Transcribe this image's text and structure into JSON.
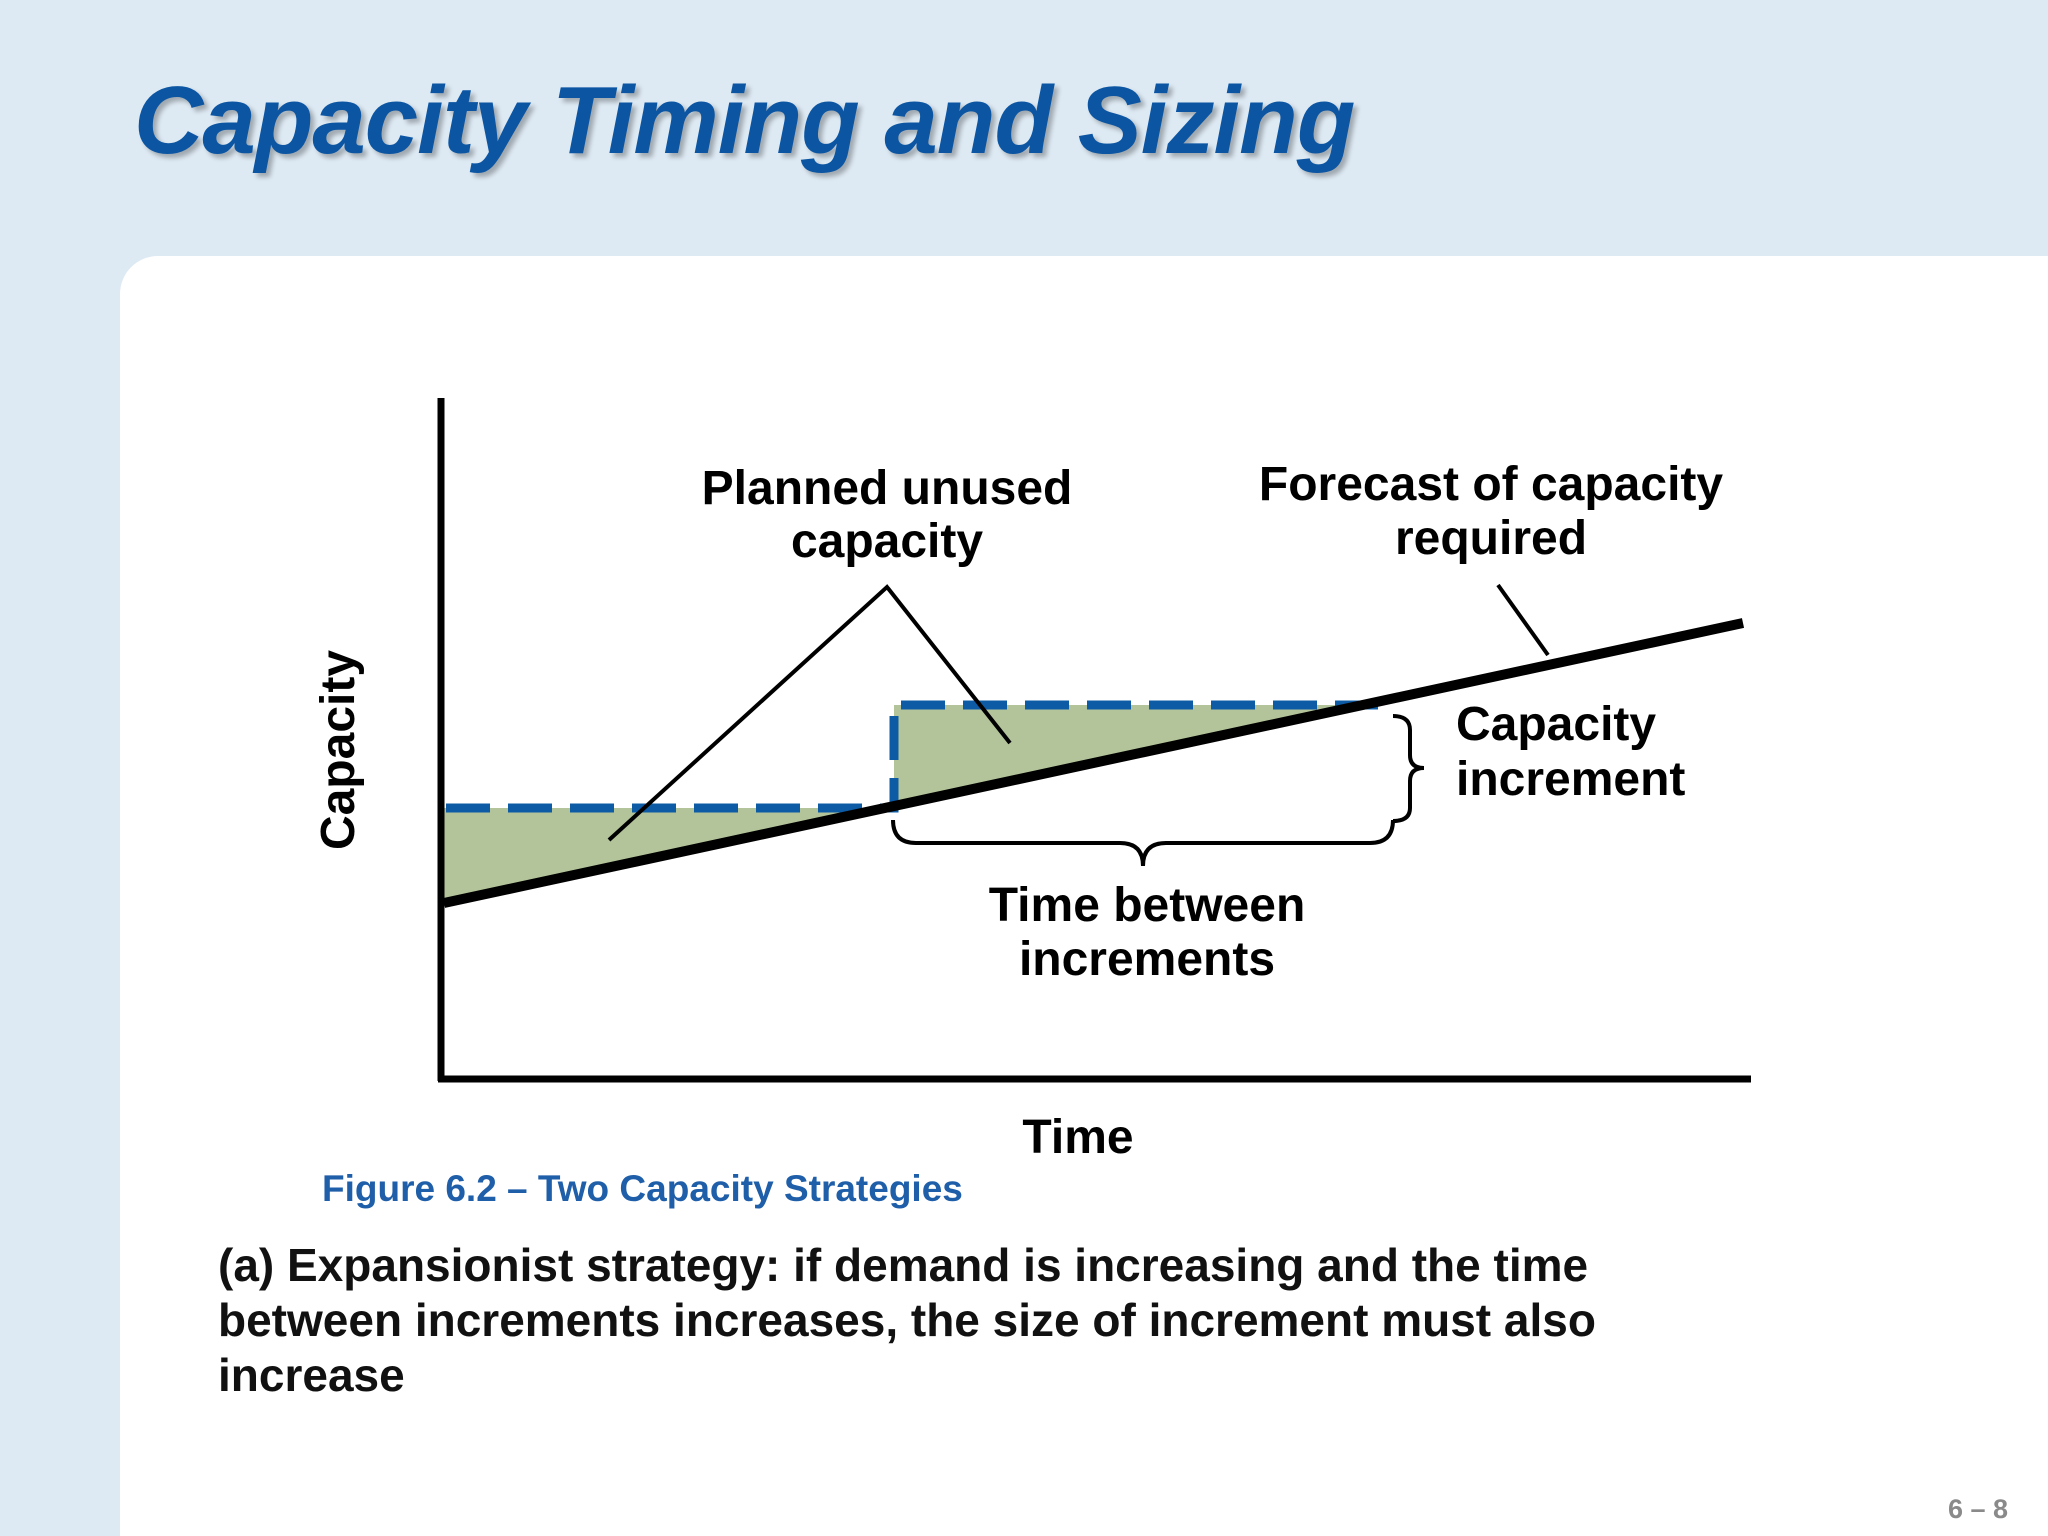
{
  "slide": {
    "title": "Capacity Timing and Sizing",
    "page_number": "6 – 8"
  },
  "diagram": {
    "y_axis_label": "Capacity",
    "x_axis_label": "Time",
    "planned_unused_line1": "Planned unused",
    "planned_unused_line2": "capacity",
    "forecast_line1": "Forecast of capacity",
    "forecast_line2": "required",
    "increment_line1": "Capacity",
    "increment_line2": "increment",
    "time_between_line1": "Time between",
    "time_between_line2": "increments"
  },
  "caption": "Figure 6.2 – Two Capacity Strategies",
  "description": "(a) Expansionist strategy: if demand is increasing and the time between increments increases, the size of increment must also increase",
  "colors": {
    "title": "#0b55a3",
    "unused_fill": "#b3c49b",
    "capacity_dashed": "#0d5ba5",
    "caption": "#1f5ea8"
  }
}
